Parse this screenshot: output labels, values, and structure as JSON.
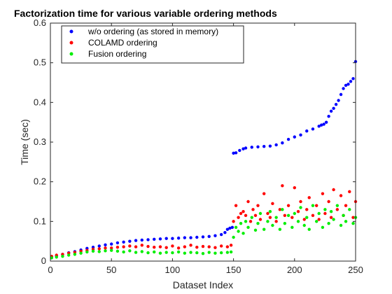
{
  "chart_data": {
    "type": "scatter",
    "title": "Factorization time for various variable ordering methods",
    "xlabel": "Dataset Index",
    "ylabel": "Time (sec)",
    "xlim": [
      0,
      250
    ],
    "ylim": [
      0,
      0.6
    ],
    "xticks": [
      0,
      50,
      100,
      150,
      200,
      250
    ],
    "yticks": [
      0,
      0.1,
      0.2,
      0.3,
      0.4,
      0.5,
      0.6
    ],
    "grid": false,
    "legend_position": "top-left",
    "series": [
      {
        "name": "w/o ordering (as stored in memory)",
        "color": "#0000ff",
        "x": [
          1,
          5,
          10,
          15,
          20,
          25,
          30,
          35,
          40,
          45,
          50,
          55,
          60,
          65,
          70,
          75,
          80,
          85,
          90,
          95,
          100,
          105,
          110,
          115,
          120,
          125,
          130,
          135,
          140,
          143,
          145,
          147,
          149,
          150,
          152,
          155,
          158,
          160,
          165,
          170,
          175,
          180,
          185,
          190,
          195,
          200,
          205,
          210,
          215,
          220,
          222,
          224,
          226,
          228,
          230,
          232,
          234,
          236,
          238,
          240,
          242,
          244,
          246,
          248,
          250
        ],
        "y": [
          0.01,
          0.013,
          0.017,
          0.021,
          0.024,
          0.028,
          0.032,
          0.035,
          0.038,
          0.041,
          0.043,
          0.046,
          0.048,
          0.05,
          0.052,
          0.053,
          0.054,
          0.055,
          0.056,
          0.057,
          0.057,
          0.058,
          0.059,
          0.059,
          0.06,
          0.061,
          0.062,
          0.064,
          0.067,
          0.072,
          0.08,
          0.083,
          0.085,
          0.272,
          0.273,
          0.279,
          0.283,
          0.285,
          0.287,
          0.288,
          0.289,
          0.29,
          0.293,
          0.298,
          0.307,
          0.313,
          0.318,
          0.328,
          0.333,
          0.34,
          0.343,
          0.345,
          0.35,
          0.365,
          0.378,
          0.385,
          0.395,
          0.405,
          0.42,
          0.435,
          0.443,
          0.446,
          0.453,
          0.46,
          0.503
        ]
      },
      {
        "name": "COLAMD ordering",
        "color": "#ff0000",
        "x": [
          1,
          5,
          10,
          15,
          20,
          25,
          30,
          35,
          40,
          45,
          50,
          55,
          60,
          65,
          70,
          75,
          80,
          85,
          90,
          95,
          100,
          105,
          110,
          115,
          120,
          125,
          130,
          135,
          140,
          145,
          148,
          150,
          152,
          154,
          156,
          158,
          160,
          162,
          164,
          166,
          168,
          170,
          172,
          175,
          178,
          180,
          182,
          185,
          188,
          190,
          192,
          195,
          198,
          200,
          203,
          205,
          208,
          210,
          212,
          215,
          218,
          220,
          223,
          225,
          228,
          230,
          232,
          235,
          238,
          240,
          242,
          245,
          248,
          250
        ],
        "y": [
          0.012,
          0.015,
          0.017,
          0.02,
          0.022,
          0.025,
          0.027,
          0.03,
          0.031,
          0.033,
          0.033,
          0.035,
          0.036,
          0.038,
          0.036,
          0.04,
          0.037,
          0.035,
          0.036,
          0.034,
          0.038,
          0.033,
          0.036,
          0.04,
          0.035,
          0.037,
          0.036,
          0.034,
          0.038,
          0.036,
          0.04,
          0.1,
          0.14,
          0.11,
          0.12,
          0.125,
          0.115,
          0.15,
          0.1,
          0.13,
          0.115,
          0.14,
          0.105,
          0.17,
          0.12,
          0.11,
          0.145,
          0.1,
          0.13,
          0.19,
          0.115,
          0.14,
          0.11,
          0.185,
          0.125,
          0.15,
          0.105,
          0.13,
          0.16,
          0.115,
          0.14,
          0.105,
          0.17,
          0.12,
          0.15,
          0.11,
          0.18,
          0.13,
          0.165,
          0.115,
          0.14,
          0.175,
          0.11,
          0.15
        ]
      },
      {
        "name": "Fusion ordering",
        "color": "#00ee00",
        "x": [
          1,
          5,
          10,
          15,
          20,
          25,
          30,
          35,
          40,
          45,
          50,
          55,
          60,
          65,
          70,
          75,
          80,
          85,
          90,
          95,
          100,
          105,
          110,
          115,
          120,
          125,
          130,
          135,
          140,
          145,
          148,
          150,
          152,
          154,
          156,
          158,
          160,
          162,
          165,
          168,
          170,
          172,
          175,
          178,
          180,
          182,
          185,
          188,
          190,
          192,
          195,
          198,
          200,
          203,
          205,
          208,
          210,
          212,
          215,
          218,
          220,
          223,
          225,
          228,
          230,
          232,
          235,
          238,
          240,
          242,
          245,
          248,
          250
        ],
        "y": [
          0.008,
          0.01,
          0.012,
          0.015,
          0.017,
          0.02,
          0.023,
          0.025,
          0.024,
          0.026,
          0.027,
          0.025,
          0.023,
          0.026,
          0.022,
          0.024,
          0.021,
          0.023,
          0.02,
          0.022,
          0.021,
          0.023,
          0.02,
          0.022,
          0.021,
          0.019,
          0.022,
          0.02,
          0.021,
          0.022,
          0.023,
          0.06,
          0.085,
          0.075,
          0.095,
          0.07,
          0.1,
          0.085,
          0.11,
          0.078,
          0.095,
          0.12,
          0.08,
          0.1,
          0.125,
          0.09,
          0.11,
          0.08,
          0.13,
          0.095,
          0.115,
          0.085,
          0.12,
          0.1,
          0.135,
          0.09,
          0.11,
          0.08,
          0.14,
          0.1,
          0.12,
          0.085,
          0.13,
          0.095,
          0.125,
          0.105,
          0.14,
          0.09,
          0.115,
          0.1,
          0.13,
          0.095,
          0.11
        ]
      }
    ]
  }
}
